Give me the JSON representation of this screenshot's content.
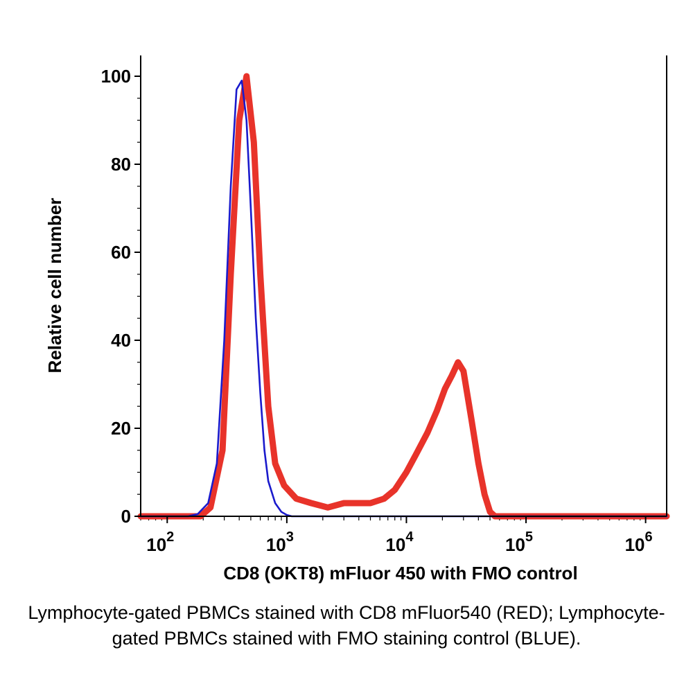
{
  "chart_data": {
    "type": "line",
    "xlabel": "CD8 (OKT8) mFluor 450 with FMO control",
    "ylabel": "Relative cell number",
    "x_scale": "log",
    "xlim": [
      60,
      1500000
    ],
    "ylim": [
      0,
      100
    ],
    "y_ticks": [
      0,
      20,
      40,
      60,
      80,
      100
    ],
    "x_ticks": [
      {
        "value": 100,
        "base": "10",
        "exp": "2"
      },
      {
        "value": 1000,
        "base": "10",
        "exp": "3"
      },
      {
        "value": 10000,
        "base": "10",
        "exp": "4"
      },
      {
        "value": 100000,
        "base": "10",
        "exp": "5"
      },
      {
        "value": 1000000,
        "base": "10",
        "exp": "6"
      }
    ],
    "grid": false,
    "series": [
      {
        "color": "#e8332a",
        "x": [
          60,
          150,
          190,
          230,
          290,
          340,
          400,
          460,
          530,
          600,
          700,
          800,
          950,
          1200,
          1600,
          2200,
          3000,
          4000,
          5000,
          6500,
          8000,
          10000,
          12000,
          15000,
          18000,
          21000,
          24000,
          27000,
          30000,
          35000,
          40000,
          45000,
          50000,
          55000,
          60000,
          100000,
          1000000,
          1500000
        ],
        "values": [
          0,
          0,
          0,
          2,
          15,
          55,
          90,
          100,
          85,
          55,
          25,
          12,
          7,
          4,
          3,
          2,
          3,
          3,
          3,
          4,
          6,
          10,
          14,
          19,
          24,
          29,
          32,
          35,
          33,
          22,
          12,
          5,
          1,
          0,
          0,
          0,
          0,
          0
        ]
      },
      {
        "color": "#1a1acc",
        "x": [
          60,
          150,
          180,
          220,
          260,
          300,
          340,
          380,
          420,
          460,
          500,
          550,
          600,
          650,
          700,
          800,
          900,
          1000,
          1100,
          1200,
          1500000
        ],
        "values": [
          0,
          0,
          0.5,
          3,
          12,
          40,
          75,
          97,
          99,
          90,
          70,
          45,
          28,
          15,
          8,
          3,
          1,
          0.3,
          0,
          0,
          0
        ]
      }
    ]
  },
  "caption": "Lymphocyte-gated PBMCs stained with CD8 mFluor540 (RED); Lymphocyte-gated PBMCs stained with FMO staining control (BLUE)."
}
